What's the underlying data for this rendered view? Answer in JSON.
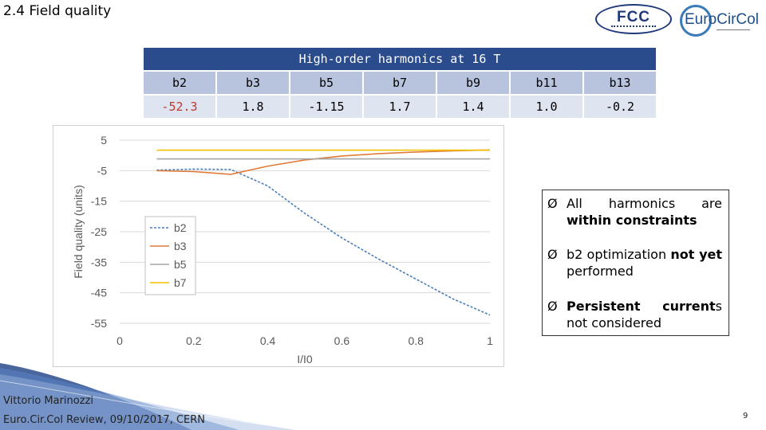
{
  "slide": {
    "title": "2.4 Field quality",
    "logo_fcc_text": "FCC",
    "logo_euro_text": "EuroCirCol",
    "author": "Vittorio Marinozzi",
    "event": "Euro.Cir.Col Review, 09/10/2017,  CERN",
    "page": "9"
  },
  "table": {
    "caption": "High-order harmonics at 16 T",
    "headers": [
      "b2",
      "b3",
      "b5",
      "b7",
      "b9",
      "b11",
      "b13"
    ],
    "values": [
      "-52.3",
      "1.8",
      "-1.15",
      "1.7",
      "1.4",
      "1.0",
      "-0.2"
    ]
  },
  "bullets": [
    {
      "marker": "Ø",
      "parts": [
        {
          "t": "All  harmonics  are ",
          "b": false
        },
        {
          "t": "within constraints",
          "b": true
        }
      ]
    },
    {
      "marker": "Ø",
      "parts": [
        {
          "t": "b2  optimization  ",
          "b": false
        },
        {
          "t": "not yet",
          "b": true
        },
        {
          "t": " performed",
          "b": false
        }
      ]
    },
    {
      "marker": "Ø",
      "parts": [
        {
          "t": "Persistent current",
          "b": true
        },
        {
          "t": "s not considered",
          "b": false
        }
      ]
    }
  ],
  "chart_data": {
    "type": "line",
    "xlabel": "I/I0",
    "ylabel": "Field quality (units)",
    "xlim": [
      0,
      1
    ],
    "ylim": [
      -55,
      5
    ],
    "xticks": [
      "0",
      "0.2",
      "0.4",
      "0.6",
      "0.8",
      "1"
    ],
    "yticks": [
      "5",
      "-5",
      "-15",
      "-25",
      "-35",
      "-45",
      "-55"
    ],
    "grid": "horizontal",
    "legend_position": "left",
    "series": [
      {
        "name": "b2",
        "color": "#4a7ebb",
        "dash": "3,2",
        "x": [
          0.1,
          0.2,
          0.3,
          0.4,
          0.5,
          0.6,
          0.7,
          0.8,
          0.9,
          1.0
        ],
        "y": [
          -4.8,
          -4.5,
          -4.6,
          -10,
          -19,
          -27,
          -34,
          -40.5,
          -47,
          -52.3
        ]
      },
      {
        "name": "b3",
        "color": "#e07b39",
        "dash": "",
        "x": [
          0.1,
          0.2,
          0.3,
          0.4,
          0.5,
          0.6,
          0.7,
          0.8,
          0.9,
          1.0
        ],
        "y": [
          -5,
          -5.3,
          -6.2,
          -3.5,
          -1.5,
          -0.2,
          0.6,
          1.1,
          1.5,
          1.8
        ]
      },
      {
        "name": "b5",
        "color": "#a5a5a5",
        "dash": "",
        "x": [
          0.1,
          1.0
        ],
        "y": [
          -1.15,
          -1.15
        ]
      },
      {
        "name": "b7",
        "color": "#f2c200",
        "dash": "",
        "x": [
          0.1,
          1.0
        ],
        "y": [
          1.7,
          1.7
        ]
      }
    ]
  }
}
